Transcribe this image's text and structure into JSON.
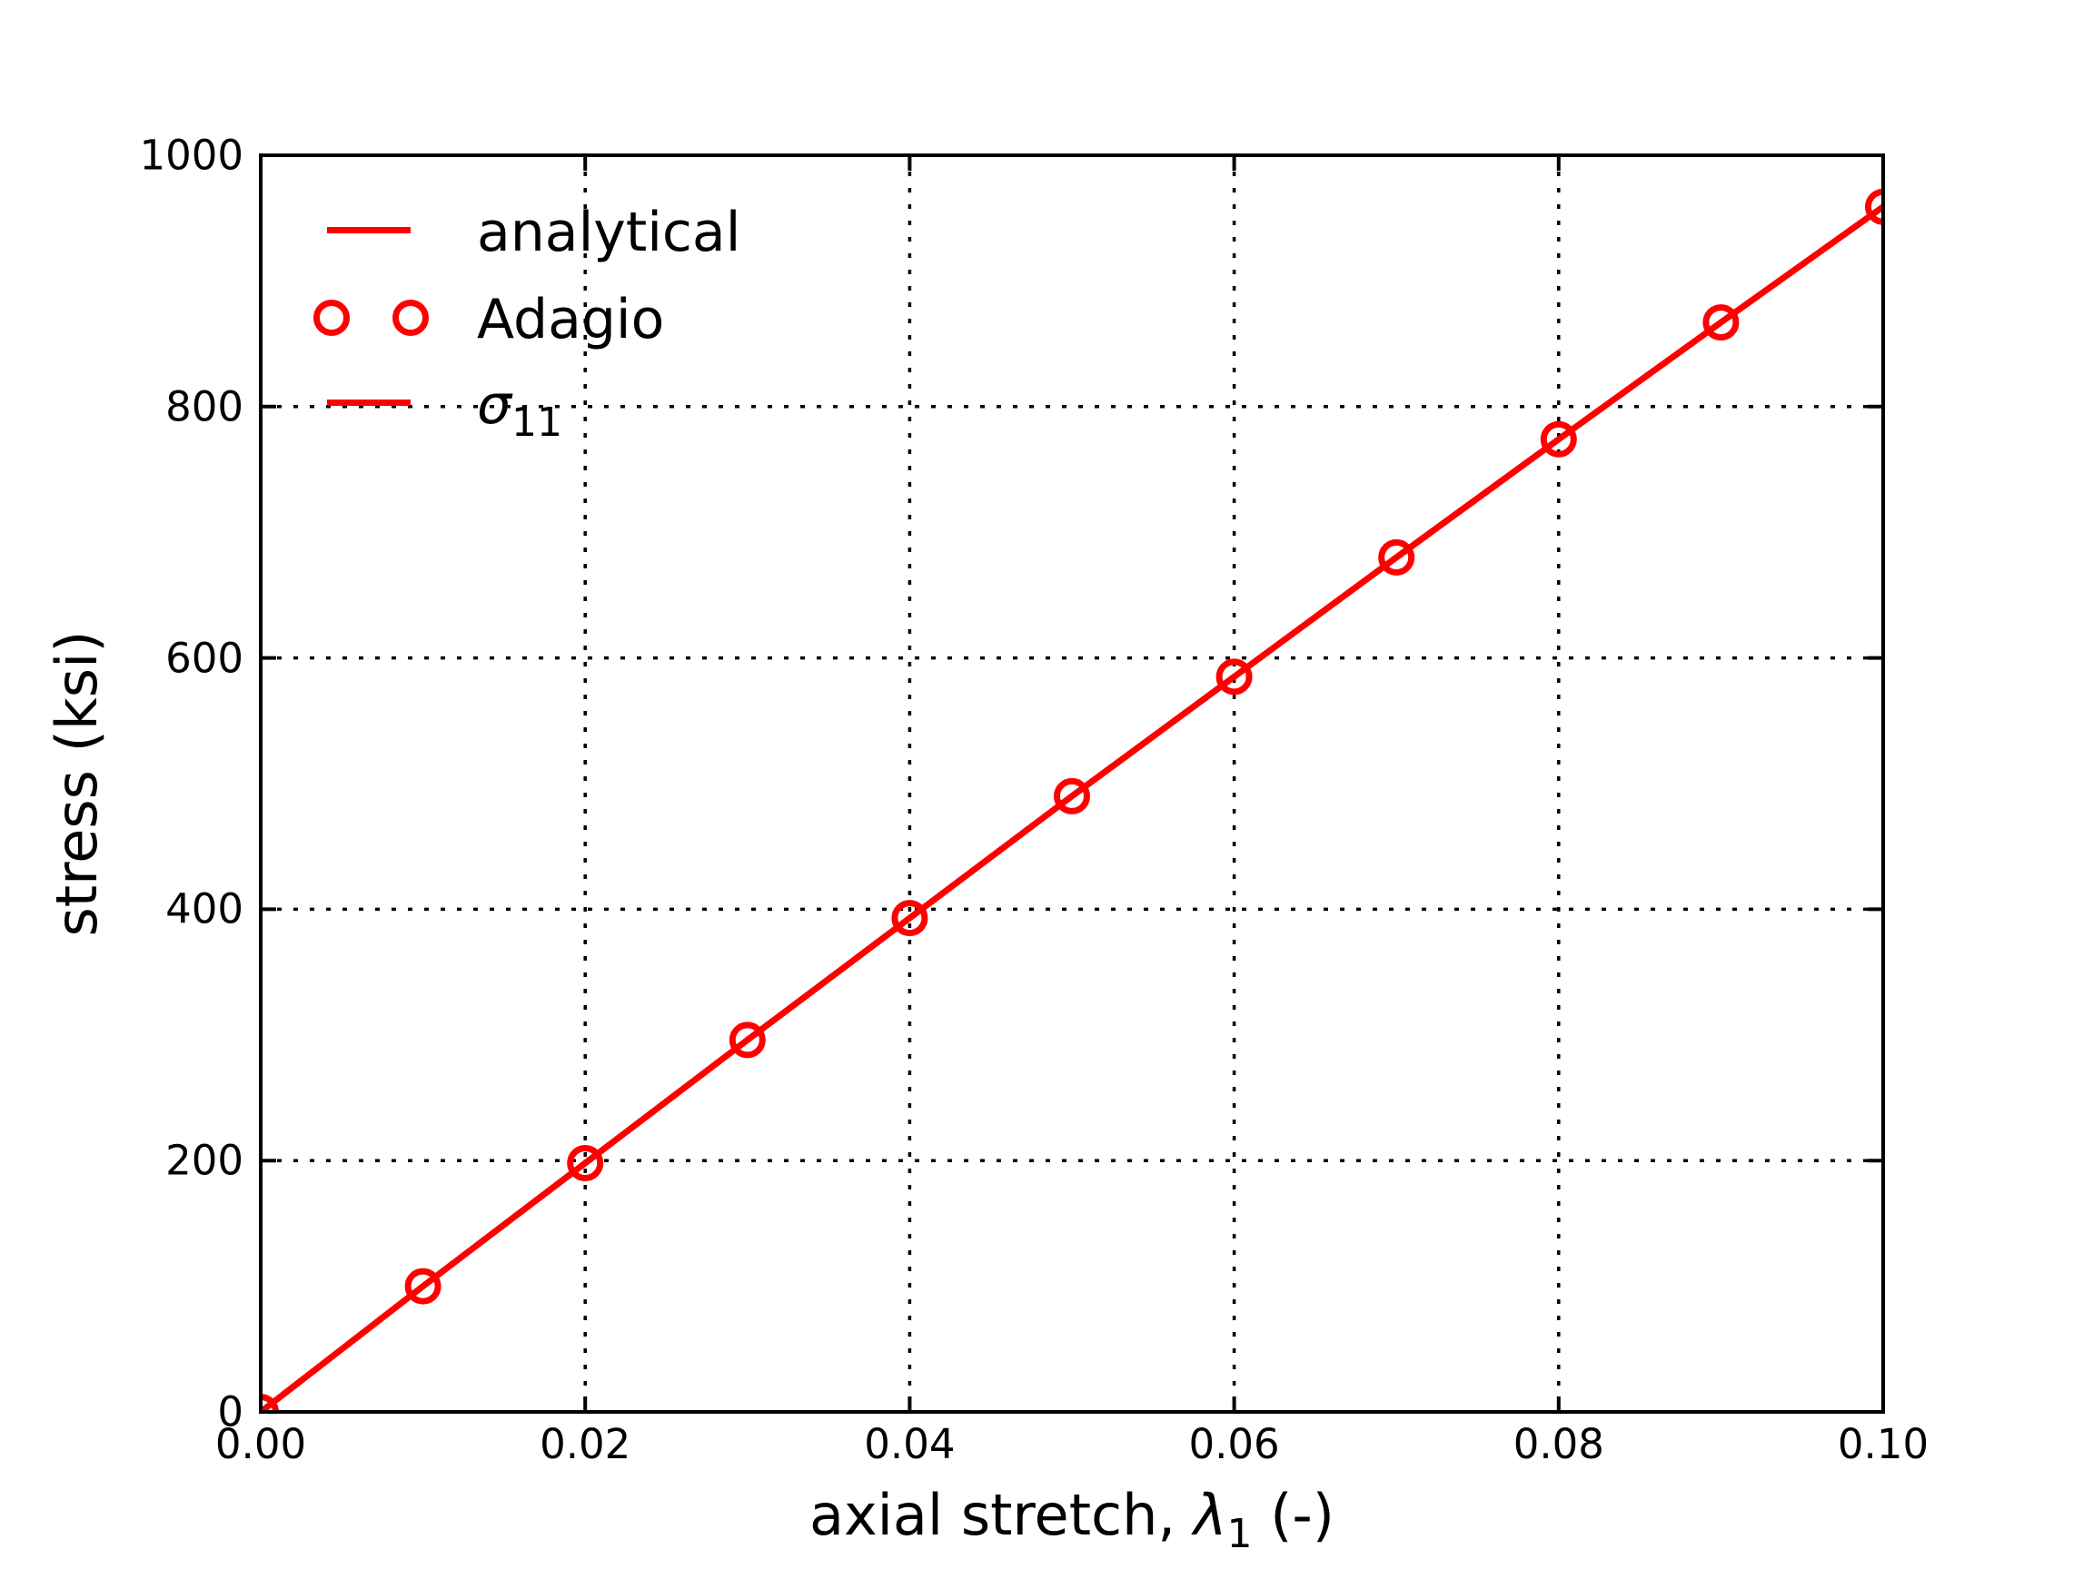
{
  "figure": {
    "background": "#ffffff",
    "axis_color": "#000000",
    "accent_color": "#ff0000"
  },
  "chart_data": {
    "type": "line",
    "title": "",
    "xlabel_prefix": "axial stretch, ",
    "xlabel_symbol": "λ",
    "xlabel_subscript": "1",
    "xlabel_suffix": " (-)",
    "ylabel": "stress (ksi)",
    "xlim": [
      0,
      0.1
    ],
    "ylim": [
      0,
      1000
    ],
    "xtick_values": [
      0,
      0.02,
      0.04,
      0.06,
      0.08,
      0.1
    ],
    "xtick_labels": [
      "0.00",
      "0.02",
      "0.04",
      "0.06",
      "0.08",
      "0.10"
    ],
    "ytick_values": [
      0,
      200,
      400,
      600,
      800,
      1000
    ],
    "ytick_labels": [
      "0",
      "200",
      "400",
      "600",
      "800",
      "1000"
    ],
    "grid": true,
    "grid_style": "dotted",
    "x": [
      0,
      0.01,
      0.02,
      0.03,
      0.04,
      0.05,
      0.06,
      0.07,
      0.08,
      0.09,
      0.1
    ],
    "series": [
      {
        "name": "analytical",
        "style": "line",
        "color": "#ff0000",
        "values": [
          0,
          100,
          198,
          296,
          393,
          490,
          585,
          680,
          774,
          867,
          959
        ]
      },
      {
        "name": "Adagio",
        "style": "open-circle-markers",
        "color": "#ff0000",
        "values": [
          0,
          100,
          198,
          296,
          393,
          490,
          585,
          680,
          774,
          867,
          959
        ]
      }
    ],
    "legend": {
      "position": "upper left",
      "items": [
        {
          "label": "analytical",
          "swatch": "line"
        },
        {
          "label": "Adagio",
          "swatch": "two-open-circles"
        },
        {
          "label_symbol": "σ",
          "label_subscript": "11",
          "swatch": "line"
        }
      ]
    }
  }
}
